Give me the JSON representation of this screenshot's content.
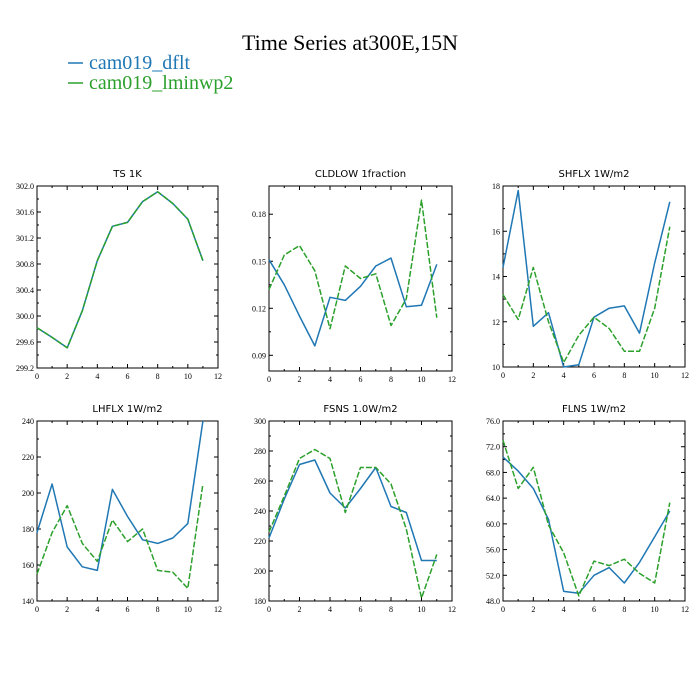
{
  "figure": {
    "title": "Time Series at300E,15N"
  },
  "legend": [
    {
      "label": "cam019_dflt",
      "color": "#1f77b4",
      "style": "solid"
    },
    {
      "label": "cam019_lminwp2",
      "color": "#2ca02c",
      "style": "dashed"
    }
  ],
  "chart_data": [
    {
      "type": "line",
      "title": "TS   1K",
      "xlim": [
        0,
        12
      ],
      "xticks": [
        0,
        2,
        4,
        6,
        8,
        10,
        12
      ],
      "ylim": [
        299.2,
        302.0
      ],
      "yticks": [
        299.2,
        299.6,
        300.0,
        300.4,
        300.8,
        301.2,
        301.6,
        302.0
      ],
      "ytick_decimals": 1,
      "x": [
        0,
        1,
        2,
        3,
        4,
        5,
        6,
        7,
        8,
        9,
        10,
        11
      ],
      "series": [
        {
          "name": "cam019_dflt",
          "values": [
            299.82,
            299.67,
            299.51,
            300.08,
            300.85,
            301.38,
            301.44,
            301.76,
            301.91,
            301.73,
            301.49,
            300.85
          ]
        },
        {
          "name": "cam019_lminwp2",
          "values": [
            299.82,
            299.67,
            299.51,
            300.08,
            300.85,
            301.38,
            301.44,
            301.76,
            301.91,
            301.73,
            301.49,
            300.85
          ]
        }
      ]
    },
    {
      "type": "line",
      "title": "CLDLOW   1fraction",
      "xlim": [
        0,
        12
      ],
      "xticks": [
        0,
        2,
        4,
        6,
        8,
        10,
        12
      ],
      "ylim": [
        0.08,
        0.198
      ],
      "yticks": [
        0.09,
        0.12,
        0.15,
        0.18
      ],
      "ytick_decimals": 2,
      "x": [
        0,
        1,
        2,
        3,
        4,
        5,
        6,
        7,
        8,
        9,
        10,
        11
      ],
      "series": [
        {
          "name": "cam019_dflt",
          "values": [
            0.151,
            0.135,
            0.115,
            0.096,
            0.127,
            0.125,
            0.134,
            0.147,
            0.152,
            0.121,
            0.122,
            0.148
          ]
        },
        {
          "name": "cam019_lminwp2",
          "values": [
            0.132,
            0.154,
            0.16,
            0.144,
            0.107,
            0.147,
            0.139,
            0.142,
            0.109,
            0.126,
            0.189,
            0.114
          ]
        }
      ]
    },
    {
      "type": "line",
      "title": "SHFLX   1W/m2",
      "xlim": [
        0,
        12
      ],
      "xticks": [
        0,
        2,
        4,
        6,
        8,
        10,
        12
      ],
      "ylim": [
        10,
        18
      ],
      "yticks": [
        10,
        12,
        14,
        16,
        18
      ],
      "ytick_decimals": 0,
      "x": [
        0,
        1,
        2,
        3,
        4,
        5,
        6,
        7,
        8,
        9,
        10,
        11
      ],
      "series": [
        {
          "name": "cam019_dflt",
          "values": [
            14.4,
            17.8,
            11.8,
            12.4,
            10.0,
            10.1,
            12.2,
            12.6,
            12.7,
            11.5,
            14.6,
            17.3
          ]
        },
        {
          "name": "cam019_lminwp2",
          "values": [
            13.2,
            12.1,
            14.4,
            12.0,
            10.2,
            11.4,
            12.2,
            11.7,
            10.7,
            10.7,
            12.6,
            16.2
          ]
        }
      ]
    },
    {
      "type": "line",
      "title": "LHFLX   1W/m2",
      "xlim": [
        0,
        12
      ],
      "xticks": [
        0,
        2,
        4,
        6,
        8,
        10,
        12
      ],
      "ylim": [
        140,
        240
      ],
      "yticks": [
        140,
        160,
        180,
        200,
        220,
        240
      ],
      "ytick_decimals": 0,
      "x": [
        0,
        1,
        2,
        3,
        4,
        5,
        6,
        7,
        8,
        9,
        10,
        11
      ],
      "series": [
        {
          "name": "cam019_dflt",
          "values": [
            178,
            205,
            170,
            159,
            157,
            202,
            187,
            174,
            172,
            175,
            183,
            240
          ]
        },
        {
          "name": "cam019_lminwp2",
          "values": [
            155,
            178,
            193,
            172,
            162,
            185,
            173,
            180,
            157,
            156,
            147,
            205
          ]
        }
      ]
    },
    {
      "type": "line",
      "title": "FSNS   1.0W/m2",
      "xlim": [
        0,
        12
      ],
      "xticks": [
        0,
        2,
        4,
        6,
        8,
        10,
        12
      ],
      "ylim": [
        180,
        300
      ],
      "yticks": [
        180,
        200,
        220,
        240,
        260,
        280,
        300
      ],
      "ytick_decimals": 0,
      "x": [
        0,
        1,
        2,
        3,
        4,
        5,
        6,
        7,
        8,
        9,
        10,
        11
      ],
      "series": [
        {
          "name": "cam019_dflt",
          "values": [
            222,
            248,
            271,
            274,
            252,
            242,
            255,
            269,
            243,
            239,
            207,
            207
          ]
        },
        {
          "name": "cam019_lminwp2",
          "values": [
            226,
            250,
            275,
            281,
            275,
            239,
            269,
            269,
            258,
            228,
            182,
            211
          ]
        }
      ]
    },
    {
      "type": "line",
      "title": "FLNS   1W/m2",
      "xlim": [
        0,
        12
      ],
      "xticks": [
        0,
        2,
        4,
        6,
        8,
        10,
        12
      ],
      "ylim": [
        48,
        76
      ],
      "yticks": [
        48.0,
        52.0,
        56.0,
        60.0,
        64.0,
        68.0,
        72.0,
        76.0
      ],
      "ytick_decimals": 1,
      "x": [
        0,
        1,
        2,
        3,
        4,
        5,
        6,
        7,
        8,
        9,
        10,
        11
      ],
      "series": [
        {
          "name": "cam019_dflt",
          "values": [
            70.4,
            68.2,
            65.5,
            60.7,
            49.5,
            49.2,
            52.0,
            53.2,
            50.8,
            54.0,
            58.0,
            62.0
          ]
        },
        {
          "name": "cam019_lminwp2",
          "values": [
            73.0,
            65.5,
            68.8,
            59.8,
            55.5,
            48.8,
            54.2,
            53.5,
            54.5,
            52.3,
            50.8,
            63.3
          ]
        }
      ]
    }
  ]
}
